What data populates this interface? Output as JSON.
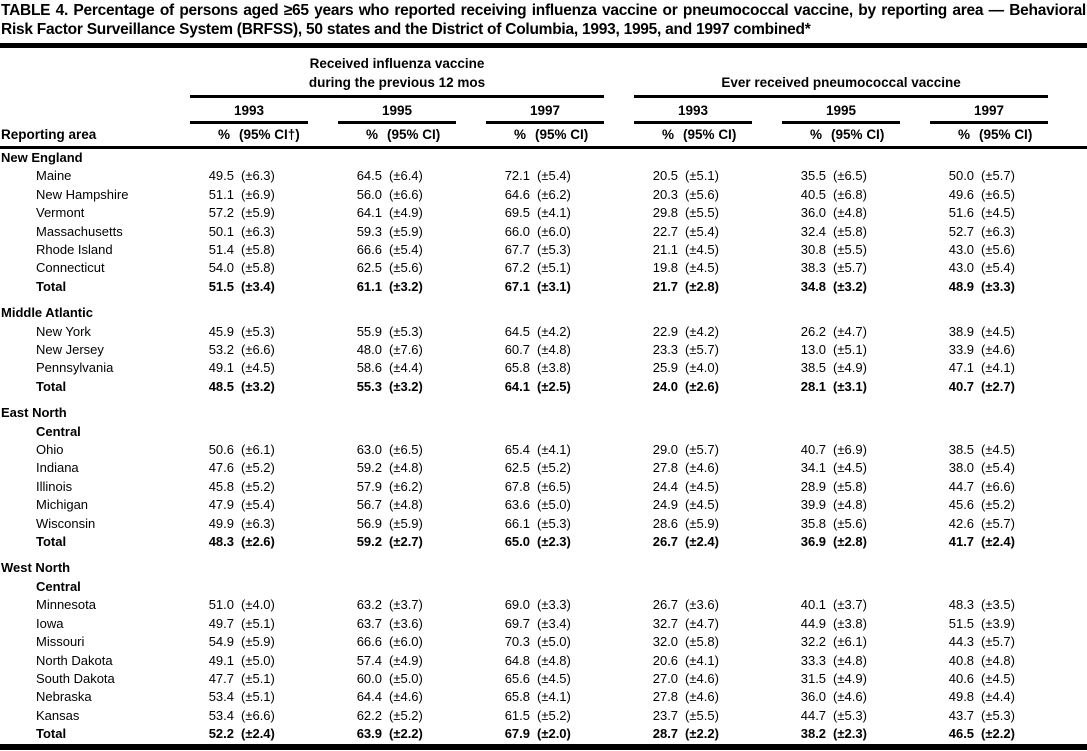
{
  "title": "TABLE 4. Percentage of persons aged ≥65 years who reported receiving influenza vaccine or pneumococcal vaccine, by reporting area — Behavioral Risk Factor Surveillance System (BRFSS), 50 states and the District of Columbia, 1993, 1995, and 1997 combined*",
  "header": {
    "area_label": "Reporting area",
    "influenza_line1": "Received influenza vaccine",
    "influenza_line2": "during the previous 12 mos",
    "pneumococcal_label": "Ever received pneumococcal vaccine",
    "years": [
      "1993",
      "1995",
      "1997"
    ],
    "pct_label": "%",
    "ci_label_first": "(95% CI†)",
    "ci_label": "(95% CI)"
  },
  "sections": [
    {
      "region_lines": [
        "New England"
      ],
      "rows": [
        {
          "area": "Maine",
          "bold": false,
          "values": [
            "49.5",
            "(±6.3)",
            "64.5",
            "(±6.4)",
            "72.1",
            "(±5.4)",
            "20.5",
            "(±5.1)",
            "35.5",
            "(±6.5)",
            "50.0",
            "(±5.7)"
          ]
        },
        {
          "area": "New Hampshire",
          "bold": false,
          "values": [
            "51.1",
            "(±6.9)",
            "56.0",
            "(±6.6)",
            "64.6",
            "(±6.2)",
            "20.3",
            "(±5.6)",
            "40.5",
            "(±6.8)",
            "49.6",
            "(±6.5)"
          ]
        },
        {
          "area": "Vermont",
          "bold": false,
          "values": [
            "57.2",
            "(±5.9)",
            "64.1",
            "(±4.9)",
            "69.5",
            "(±4.1)",
            "29.8",
            "(±5.5)",
            "36.0",
            "(±4.8)",
            "51.6",
            "(±4.5)"
          ]
        },
        {
          "area": "Massachusetts",
          "bold": false,
          "values": [
            "50.1",
            "(±6.3)",
            "59.3",
            "(±5.9)",
            "66.0",
            "(±6.0)",
            "22.7",
            "(±5.4)",
            "32.4",
            "(±5.8)",
            "52.7",
            "(±6.3)"
          ]
        },
        {
          "area": "Rhode Island",
          "bold": false,
          "values": [
            "51.4",
            "(±5.8)",
            "66.6",
            "(±5.4)",
            "67.7",
            "(±5.3)",
            "21.1",
            "(±4.5)",
            "30.8",
            "(±5.5)",
            "43.0",
            "(±5.6)"
          ]
        },
        {
          "area": "Connecticut",
          "bold": false,
          "values": [
            "54.0",
            "(±5.8)",
            "62.5",
            "(±5.6)",
            "67.2",
            "(±5.1)",
            "19.8",
            "(±4.5)",
            "38.3",
            "(±5.7)",
            "43.0",
            "(±5.4)"
          ]
        },
        {
          "area": "Total",
          "bold": true,
          "values": [
            "51.5",
            "(±3.4)",
            "61.1",
            "(±3.2)",
            "67.1",
            "(±3.1)",
            "21.7",
            "(±2.8)",
            "34.8",
            "(±3.2)",
            "48.9",
            "(±3.3)"
          ]
        }
      ]
    },
    {
      "region_lines": [
        "Middle Atlantic"
      ],
      "rows": [
        {
          "area": "New York",
          "bold": false,
          "values": [
            "45.9",
            "(±5.3)",
            "55.9",
            "(±5.3)",
            "64.5",
            "(±4.2)",
            "22.9",
            "(±4.2)",
            "26.2",
            "(±4.7)",
            "38.9",
            "(±4.5)"
          ]
        },
        {
          "area": "New Jersey",
          "bold": false,
          "values": [
            "53.2",
            "(±6.6)",
            "48.0",
            "(±7.6)",
            "60.7",
            "(±4.8)",
            "23.3",
            "(±5.7)",
            "13.0",
            "(±5.1)",
            "33.9",
            "(±4.6)"
          ]
        },
        {
          "area": "Pennsylvania",
          "bold": false,
          "values": [
            "49.1",
            "(±4.5)",
            "58.6",
            "(±4.4)",
            "65.8",
            "(±3.8)",
            "25.9",
            "(±4.0)",
            "38.5",
            "(±4.9)",
            "47.1",
            "(±4.1)"
          ]
        },
        {
          "area": "Total",
          "bold": true,
          "values": [
            "48.5",
            "(±3.2)",
            "55.3",
            "(±3.2)",
            "64.1",
            "(±2.5)",
            "24.0",
            "(±2.6)",
            "28.1",
            "(±3.1)",
            "40.7",
            "(±2.7)"
          ]
        }
      ]
    },
    {
      "region_lines": [
        "East North",
        "Central"
      ],
      "rows": [
        {
          "area": "Ohio",
          "bold": false,
          "values": [
            "50.6",
            "(±6.1)",
            "63.0",
            "(±6.5)",
            "65.4",
            "(±4.1)",
            "29.0",
            "(±5.7)",
            "40.7",
            "(±6.9)",
            "38.5",
            "(±4.5)"
          ]
        },
        {
          "area": "Indiana",
          "bold": false,
          "values": [
            "47.6",
            "(±5.2)",
            "59.2",
            "(±4.8)",
            "62.5",
            "(±5.2)",
            "27.8",
            "(±4.6)",
            "34.1",
            "(±4.5)",
            "38.0",
            "(±5.4)"
          ]
        },
        {
          "area": "Illinois",
          "bold": false,
          "values": [
            "45.8",
            "(±5.2)",
            "57.9",
            "(±6.2)",
            "67.8",
            "(±6.5)",
            "24.4",
            "(±4.5)",
            "28.9",
            "(±5.8)",
            "44.7",
            "(±6.6)"
          ]
        },
        {
          "area": "Michigan",
          "bold": false,
          "values": [
            "47.9",
            "(±5.4)",
            "56.7",
            "(±4.8)",
            "63.6",
            "(±5.0)",
            "24.9",
            "(±4.5)",
            "39.9",
            "(±4.8)",
            "45.6",
            "(±5.2)"
          ]
        },
        {
          "area": "Wisconsin",
          "bold": false,
          "values": [
            "49.9",
            "(±6.3)",
            "56.9",
            "(±5.9)",
            "66.1",
            "(±5.3)",
            "28.6",
            "(±5.9)",
            "35.8",
            "(±5.6)",
            "42.6",
            "(±5.7)"
          ]
        },
        {
          "area": "Total",
          "bold": true,
          "values": [
            "48.3",
            "(±2.6)",
            "59.2",
            "(±2.7)",
            "65.0",
            "(±2.3)",
            "26.7",
            "(±2.4)",
            "36.9",
            "(±2.8)",
            "41.7",
            "(±2.4)"
          ]
        }
      ]
    },
    {
      "region_lines": [
        "West North",
        "Central"
      ],
      "rows": [
        {
          "area": "Minnesota",
          "bold": false,
          "values": [
            "51.0",
            "(±4.0)",
            "63.2",
            "(±3.7)",
            "69.0",
            "(±3.3)",
            "26.7",
            "(±3.6)",
            "40.1",
            "(±3.7)",
            "48.3",
            "(±3.5)"
          ]
        },
        {
          "area": "Iowa",
          "bold": false,
          "values": [
            "49.7",
            "(±5.1)",
            "63.7",
            "(±3.6)",
            "69.7",
            "(±3.4)",
            "32.7",
            "(±4.7)",
            "44.9",
            "(±3.8)",
            "51.5",
            "(±3.9)"
          ]
        },
        {
          "area": "Missouri",
          "bold": false,
          "values": [
            "54.9",
            "(±5.9)",
            "66.6",
            "(±6.0)",
            "70.3",
            "(±5.0)",
            "32.0",
            "(±5.8)",
            "32.2",
            "(±6.1)",
            "44.3",
            "(±5.7)"
          ]
        },
        {
          "area": "North Dakota",
          "bold": false,
          "values": [
            "49.1",
            "(±5.0)",
            "57.4",
            "(±4.9)",
            "64.8",
            "(±4.8)",
            "20.6",
            "(±4.1)",
            "33.3",
            "(±4.8)",
            "40.8",
            "(±4.8)"
          ]
        },
        {
          "area": "South Dakota",
          "bold": false,
          "values": [
            "47.7",
            "(±5.1)",
            "60.0",
            "(±5.0)",
            "65.6",
            "(±4.5)",
            "27.0",
            "(±4.6)",
            "31.5",
            "(±4.9)",
            "40.6",
            "(±4.5)"
          ]
        },
        {
          "area": "Nebraska",
          "bold": false,
          "values": [
            "53.4",
            "(±5.1)",
            "64.4",
            "(±4.6)",
            "65.8",
            "(±4.1)",
            "27.8",
            "(±4.6)",
            "36.0",
            "(±4.6)",
            "49.8",
            "(±4.4)"
          ]
        },
        {
          "area": "Kansas",
          "bold": false,
          "values": [
            "53.4",
            "(±6.6)",
            "62.2",
            "(±5.2)",
            "61.5",
            "(±5.2)",
            "23.7",
            "(±5.5)",
            "44.7",
            "(±5.3)",
            "43.7",
            "(±5.3)"
          ]
        },
        {
          "area": "Total",
          "bold": true,
          "values": [
            "52.2",
            "(±2.4)",
            "63.9",
            "(±2.2)",
            "67.9",
            "(±2.0)",
            "28.7",
            "(±2.2)",
            "38.2",
            "(±2.3)",
            "46.5",
            "(±2.2)"
          ]
        }
      ]
    }
  ]
}
